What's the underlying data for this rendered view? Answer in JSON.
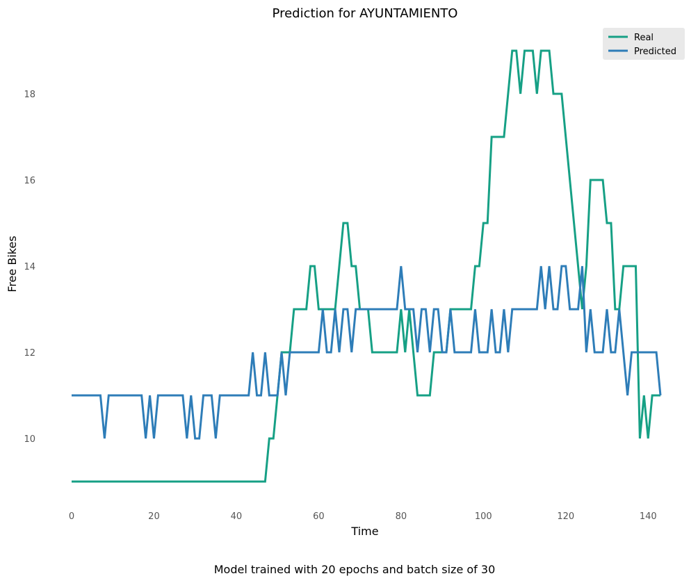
{
  "chart_data": {
    "type": "line",
    "title": "Prediction for AYUNTAMIENTO",
    "xlabel": "Time",
    "ylabel": "Free Bikes",
    "caption": "Model trained with 20 epochs and batch size of 30",
    "xlim": [
      0,
      143
    ],
    "ylim": [
      8.5,
      19.3
    ],
    "xticks": [
      0,
      20,
      40,
      60,
      80,
      100,
      120,
      140
    ],
    "yticks": [
      10,
      12,
      14,
      16,
      18
    ],
    "grid": false,
    "legend_position": "top-right",
    "series": [
      {
        "name": "Real",
        "color": "#16a085",
        "values": [
          9,
          9,
          9,
          9,
          9,
          9,
          9,
          9,
          9,
          9,
          9,
          9,
          9,
          9,
          9,
          9,
          9,
          9,
          9,
          9,
          9,
          9,
          9,
          9,
          9,
          9,
          9,
          9,
          9,
          9,
          9,
          9,
          9,
          9,
          9,
          9,
          9,
          9,
          9,
          9,
          9,
          9,
          9,
          9,
          9,
          9,
          9,
          9,
          10,
          10,
          11,
          12,
          12,
          12,
          13,
          13,
          13,
          13,
          14,
          14,
          13,
          13,
          13,
          13,
          13,
          14,
          15,
          15,
          14,
          14,
          13,
          13,
          13,
          12,
          12,
          12,
          12,
          12,
          12,
          12,
          13,
          12,
          13,
          12,
          11,
          11,
          11,
          11,
          12,
          12,
          12,
          12,
          13,
          13,
          13,
          13,
          13,
          13,
          14,
          14,
          15,
          15,
          17,
          17,
          17,
          17,
          18,
          19,
          19,
          18,
          19,
          19,
          19,
          18,
          19,
          19,
          19,
          18,
          18,
          18,
          17,
          16,
          15,
          14,
          13,
          14,
          16,
          16,
          16,
          16,
          15,
          15,
          13,
          13,
          14,
          14,
          14,
          14,
          10,
          11,
          10,
          11,
          11,
          11
        ]
      },
      {
        "name": "Predicted",
        "color": "#2e7db8",
        "values": [
          11,
          11,
          11,
          11,
          11,
          11,
          11,
          11,
          10,
          11,
          11,
          11,
          11,
          11,
          11,
          11,
          11,
          11,
          10,
          11,
          10,
          11,
          11,
          11,
          11,
          11,
          11,
          11,
          10,
          11,
          10,
          10,
          11,
          11,
          11,
          10,
          11,
          11,
          11,
          11,
          11,
          11,
          11,
          11,
          12,
          11,
          11,
          12,
          11,
          11,
          11,
          12,
          11,
          12,
          12,
          12,
          12,
          12,
          12,
          12,
          12,
          13,
          12,
          12,
          13,
          12,
          13,
          13,
          12,
          13,
          13,
          13,
          13,
          13,
          13,
          13,
          13,
          13,
          13,
          13,
          14,
          13,
          13,
          13,
          12,
          13,
          13,
          12,
          13,
          13,
          12,
          12,
          13,
          12,
          12,
          12,
          12,
          12,
          13,
          12,
          12,
          12,
          13,
          12,
          12,
          13,
          12,
          13,
          13,
          13,
          13,
          13,
          13,
          13,
          14,
          13,
          14,
          13,
          13,
          14,
          14,
          13,
          13,
          13,
          14,
          12,
          13,
          12,
          12,
          12,
          13,
          12,
          12,
          13,
          12,
          11,
          12,
          12,
          12,
          12,
          12,
          12,
          12,
          11
        ]
      }
    ]
  }
}
